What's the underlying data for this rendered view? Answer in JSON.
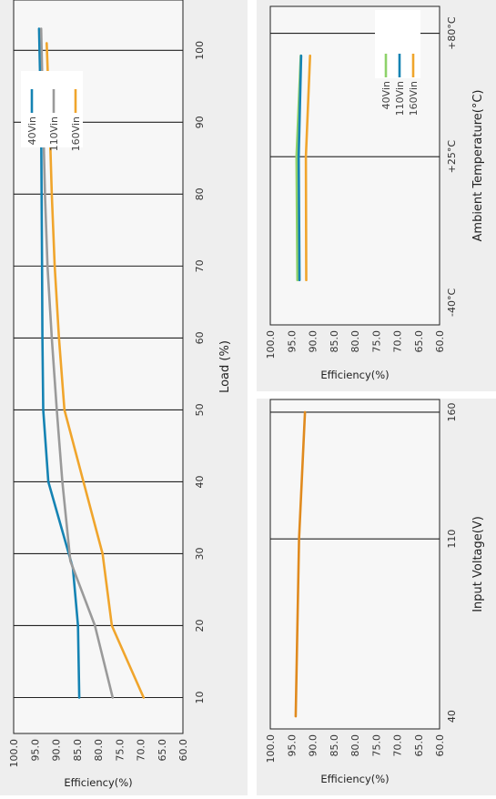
{
  "chart_data": [
    {
      "id": "load",
      "type": "line",
      "xlabel": "Load (%)",
      "ylabel": "Efficiency(%)",
      "x_ticks": [
        "10",
        "20",
        "30",
        "40",
        "50",
        "60",
        "70",
        "80",
        "90",
        "100"
      ],
      "y_ticks": [
        "100.0",
        "95.0",
        "90.0",
        "85.0",
        "80.0",
        "75.0",
        "70.0",
        "65.0",
        "60.0"
      ],
      "xlim": [
        5,
        107
      ],
      "ylim": [
        60,
        100
      ],
      "grid": "vertical",
      "legend_position": "top-right",
      "series": [
        {
          "name": "40Vin",
          "color": "#1583b3",
          "x": [
            10,
            20,
            28,
            40,
            50,
            60,
            70,
            80,
            90,
            103
          ],
          "y": [
            84.5,
            84.8,
            86.0,
            91.8,
            93.0,
            93.2,
            93.3,
            93.4,
            93.5,
            94.0
          ]
        },
        {
          "name": "110Vin",
          "color": "#9a9a9a",
          "x": [
            10,
            20,
            29,
            40,
            50,
            60,
            70,
            80,
            90,
            103
          ],
          "y": [
            76.6,
            80.8,
            86.6,
            88.5,
            89.8,
            91.0,
            92.0,
            92.6,
            93.0,
            93.5
          ]
        },
        {
          "name": "160Vin",
          "color": "#f0a52c",
          "x": [
            10,
            20,
            30,
            40,
            50,
            60,
            70,
            80,
            90,
            101
          ],
          "y": [
            69.3,
            76.8,
            79.0,
            83.5,
            88.0,
            89.3,
            90.3,
            91.0,
            91.5,
            92.2
          ]
        }
      ]
    },
    {
      "id": "temp",
      "type": "line",
      "xlabel": "Ambient Temperature(°C)",
      "ylabel": "Efficiency(%)",
      "x_ticks": [
        "-40°C",
        "+25°C",
        "+80°C"
      ],
      "x_tick_values": [
        -40,
        25,
        80
      ],
      "y_ticks": [
        "100.0",
        "95.0",
        "90.0",
        "85.0",
        "80.0",
        "75.0",
        "70.0",
        "65.0",
        "60.0"
      ],
      "xlim": [
        -50,
        92
      ],
      "ylim": [
        60,
        100
      ],
      "grid": "vertical",
      "legend_position": "top-right",
      "series": [
        {
          "name": "40Vin",
          "color": "#8ed26a",
          "x": [
            -30,
            25,
            70
          ],
          "y": [
            93.6,
            93.8,
            92.8
          ]
        },
        {
          "name": "110Vin",
          "color": "#1583b3",
          "x": [
            -30,
            25,
            70
          ],
          "y": [
            93.1,
            93.3,
            92.7
          ]
        },
        {
          "name": "160Vin",
          "color": "#f0a52c",
          "x": [
            -30,
            25,
            70
          ],
          "y": [
            91.5,
            91.6,
            90.6
          ]
        }
      ]
    },
    {
      "id": "voltage",
      "type": "line",
      "xlabel": "Input Voltage(V)",
      "ylabel": "Efficiency(%)",
      "x_ticks": [
        "40",
        "110",
        "160"
      ],
      "x_tick_values": [
        40,
        110,
        160
      ],
      "y_ticks": [
        "100.0",
        "95.0",
        "90.0",
        "85.0",
        "80.0",
        "75.0",
        "70.0",
        "65.0",
        "60.0"
      ],
      "xlim": [
        35,
        165
      ],
      "ylim": [
        60,
        100
      ],
      "grid": "vertical",
      "series": [
        {
          "color": "#e08a1e",
          "x": [
            40,
            110,
            160
          ],
          "y": [
            94.0,
            93.2,
            91.8
          ]
        }
      ]
    }
  ]
}
